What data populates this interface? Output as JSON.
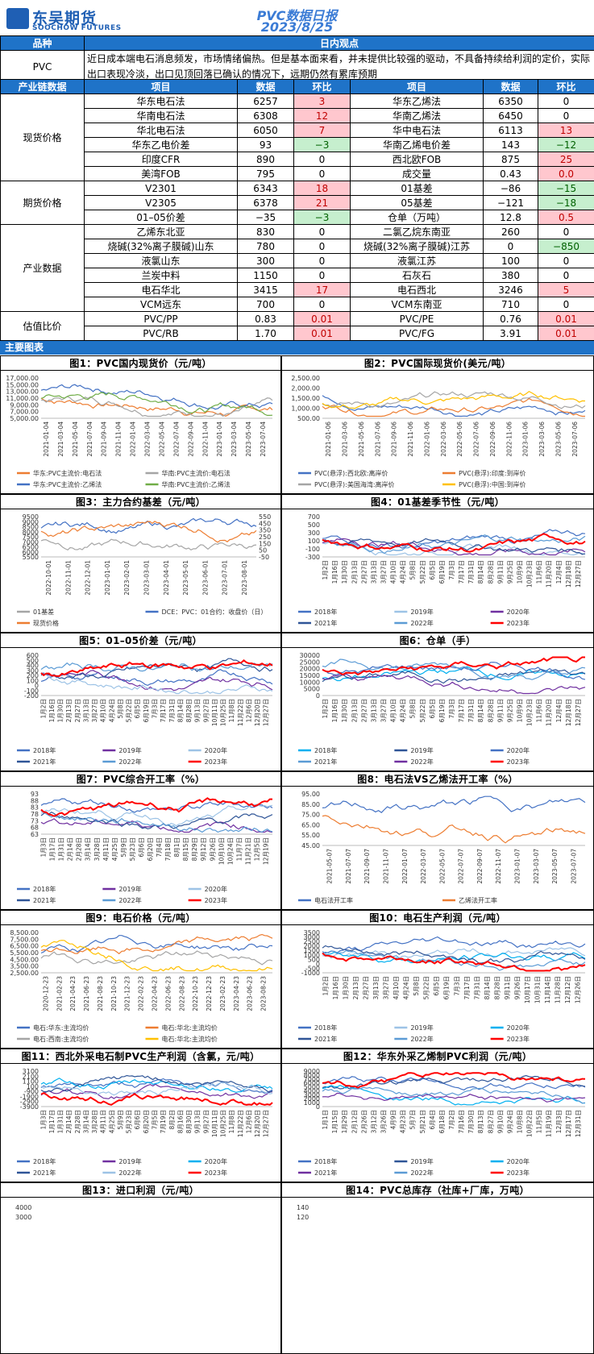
{
  "header": {
    "logo_cn": "东吴期货",
    "logo_en": "SOOCHOW FUTURES",
    "title": "PVC数据日报",
    "date": "2023/8/25"
  },
  "view": {
    "h1": "品种",
    "h2": "日内观点",
    "product": "PVC",
    "text": "近日成本端电石消息频发，市场情绪偏热。但是基本面来看，并未提供比较强的驱动，不具备持续给利润的定价，实际出口表现冷淡，出口见顶回落已确认的情况下，远期仍然有累库预期"
  },
  "table_header": {
    "c0": "产业链数据",
    "c1": "项目",
    "c2": "数据",
    "c3": "环比",
    "c4": "项目",
    "c5": "数据",
    "c6": "环比"
  },
  "sections": [
    {
      "cat": "现货价格",
      "rows": [
        [
          "华东电石法",
          "6257",
          "3",
          "up",
          "华东乙烯法",
          "6350",
          "0",
          ""
        ],
        [
          "华南电石法",
          "6308",
          "12",
          "up",
          "华南乙烯法",
          "6450",
          "0",
          ""
        ],
        [
          "华北电石法",
          "6050",
          "7",
          "up",
          "华中电石法",
          "6113",
          "13",
          "up"
        ],
        [
          "华东乙电价差",
          "93",
          "−3",
          "dn",
          "华南乙烯电价差",
          "143",
          "−12",
          "dn"
        ],
        [
          "印度CFR",
          "890",
          "0",
          "",
          "西北欧FOB",
          "875",
          "25",
          "up"
        ],
        [
          "美湾FOB",
          "795",
          "0",
          "",
          "成交量",
          "0.43",
          "0.0",
          "up"
        ]
      ]
    },
    {
      "cat": "期货价格",
      "rows": [
        [
          "V2301",
          "6343",
          "18",
          "up",
          "01基差",
          "−86",
          "−15",
          "dn"
        ],
        [
          "V2305",
          "6378",
          "21",
          "up",
          "05基差",
          "−121",
          "−18",
          "dn"
        ],
        [
          "01–05价差",
          "−35",
          "−3",
          "dn",
          "仓单（万吨）",
          "12.8",
          "0.5",
          "up"
        ]
      ]
    },
    {
      "cat": "产业数据",
      "rows": [
        [
          "乙烯东北亚",
          "830",
          "0",
          "",
          "二氯乙烷东南亚",
          "260",
          "0",
          ""
        ],
        [
          "烧碱(32%离子膜碱)山东",
          "780",
          "0",
          "",
          "烧碱(32%离子膜碱)江苏",
          "0",
          "−850",
          "dn"
        ],
        [
          "液氯山东",
          "300",
          "0",
          "",
          "液氯江苏",
          "100",
          "0",
          ""
        ],
        [
          "兰炭中料",
          "1150",
          "0",
          "",
          "石灰石",
          "380",
          "0",
          ""
        ],
        [
          "电石华北",
          "3415",
          "17",
          "up",
          "电石西北",
          "3246",
          "5",
          "up"
        ],
        [
          "VCM远东",
          "700",
          "0",
          "",
          "VCM东南亚",
          "710",
          "0",
          ""
        ]
      ]
    },
    {
      "cat": "估值比价",
      "rows": [
        [
          "PVC/PP",
          "0.83",
          "0.01",
          "up",
          "PVC/PE",
          "0.76",
          "0.01",
          "up"
        ],
        [
          "PVC/RB",
          "1.70",
          "0.01",
          "up",
          "PVC/FG",
          "3.91",
          "0.01",
          "up"
        ]
      ]
    }
  ],
  "charts_bar": "主要图表",
  "charts": [
    {
      "title": "图1：PVC国内现货价（元/吨）",
      "yticks": [
        "17,000.00",
        "15,000.00",
        "13,000.00",
        "11,000.00",
        "9,000.00",
        "7,000.00",
        "5,000.00"
      ],
      "xticks": [
        "2021-01-04",
        "2021-03-04",
        "2021-05-04",
        "2021-07-04",
        "2021-09-04",
        "2021-11-04",
        "2022-01-04",
        "2022-03-04",
        "2022-05-04",
        "2022-07-04",
        "2022-09-04",
        "2022-11-04",
        "2023-01-04",
        "2023-03-04",
        "2023-05-04",
        "2023-07-04"
      ],
      "legend": [
        "华东:PVC主流价:电石法",
        "华南:PVC主流价:电石法",
        "华东:PVC主流价:乙烯法",
        "华南:PVC主流价:乙烯法"
      ],
      "colors": [
        "#ed7d31",
        "#a5a5a5",
        "#4472c4",
        "#70ad47"
      ]
    },
    {
      "title": "图2：PVC国际现货价(美元/吨）",
      "yticks": [
        "2,500.00",
        "2,000.00",
        "1,500.00",
        "1,000.00",
        "500.00"
      ],
      "xticks": [
        "2021-01-06",
        "2021-03-06",
        "2021-05-06",
        "2021-07-06",
        "2021-09-06",
        "2021-11-06",
        "2022-01-06",
        "2022-03-06",
        "2022-05-06",
        "2022-07-06",
        "2022-09-06",
        "2022-11-06",
        "2023-01-06",
        "2023-03-06",
        "2023-05-06",
        "2023-07-06"
      ],
      "legend": [
        "PVC(悬浮):西北欧:离岸价",
        "PVC(悬浮):印度:到岸价",
        "PVC(悬浮):美国海湾:离岸价",
        "PVC(悬浮):中国:到岸价"
      ],
      "colors": [
        "#4472c4",
        "#ed7d31",
        "#a5a5a5",
        "#ffc000"
      ]
    },
    {
      "title": "图3：主力合约基差（元/吨）",
      "yticks": [
        "9500",
        "9000",
        "8500",
        "8000",
        "7500",
        "7000",
        "6500",
        "6000",
        "5500"
      ],
      "y2ticks": [
        "550",
        "450",
        "350",
        "250",
        "150",
        "50",
        "-50"
      ],
      "xticks": [
        "2022-10-01",
        "2022-11-01",
        "2022-12-01",
        "2023-01-01",
        "2023-02-01",
        "2023-03-01",
        "2023-04-01",
        "2023-05-01",
        "2023-06-01",
        "2023-07-01",
        "2023-08-01"
      ],
      "legend": [
        "01基差",
        "DCE：PVC：01合约：收盘价（日）",
        "现货价格"
      ],
      "colors": [
        "#a5a5a5",
        "#4472c4",
        "#ed7d31"
      ]
    },
    {
      "title": "图4：01基差季节性（元/吨）",
      "yticks": [
        "700",
        "500",
        "300",
        "100",
        "-100",
        "-300"
      ],
      "xticks": [
        "1月2日",
        "1月16日",
        "1月30日",
        "2月13日",
        "2月27日",
        "3月13日",
        "3月27日",
        "4月10日",
        "4月24日",
        "5月8日",
        "5月22日",
        "6月5日",
        "6月19日",
        "7月3日",
        "7月17日",
        "7月31日",
        "8月14日",
        "8月28日",
        "9月11日",
        "9月25日",
        "10月9日",
        "10月23日",
        "11月6日",
        "11月20日",
        "12月4日",
        "12月18日",
        "12月27日"
      ],
      "legend": [
        "2018年",
        "2019年",
        "2020年",
        "2021年",
        "2022年",
        "2023年"
      ],
      "colors": [
        "#4472c4",
        "#9dc3e6",
        "#7030a0",
        "#2f5597",
        "#5b9bd5",
        "#ff0000"
      ]
    },
    {
      "title": "图5：01–05价差（元/吨）",
      "yticks": [
        "600",
        "500",
        "400",
        "300",
        "200",
        "100",
        "0",
        "-100",
        "-200"
      ],
      "xticks": [
        "1月2日",
        "1月16日",
        "1月30日",
        "2月13日",
        "2月27日",
        "3月13日",
        "3月27日",
        "4月10日",
        "4月24日",
        "5月8日",
        "5月22日",
        "6月5日",
        "6月19日",
        "7月3日",
        "7月17日",
        "7月31日",
        "8月14日",
        "8月28日",
        "9月13日",
        "9月27日",
        "10月11日",
        "10月25日",
        "11月8日",
        "11月22日",
        "12月6日",
        "12月20日",
        "12月27日"
      ],
      "legend": [
        "2018年",
        "2019年",
        "2020年",
        "2021年",
        "2022年",
        "2023年"
      ],
      "colors": [
        "#4472c4",
        "#7030a0",
        "#9dc3e6",
        "#2f5597",
        "#5b9bd5",
        "#ff0000"
      ]
    },
    {
      "title": "图6：仓单（手）",
      "yticks": [
        "30000",
        "25000",
        "20000",
        "15000",
        "10000",
        "5000",
        "0"
      ],
      "xticks": [
        "1月2日",
        "1月16日",
        "1月30日",
        "2月13日",
        "2月27日",
        "3月13日",
        "3月27日",
        "4月10日",
        "4月24日",
        "5月8日",
        "5月22日",
        "6月5日",
        "6月19日",
        "7月3日",
        "7月17日",
        "7月31日",
        "8月14日",
        "8月28日",
        "9月11日",
        "9月25日",
        "10月9日",
        "10月23日",
        "11月6日",
        "11月20日",
        "12月4日",
        "12月18日",
        "12月27日"
      ],
      "legend": [
        "2018年",
        "2019年",
        "2020年",
        "2021年",
        "2022年",
        "2023年"
      ],
      "colors": [
        "#00b0f0",
        "#2f5597",
        "#4472c4",
        "#5b9bd5",
        "#7030a0",
        "#ff0000"
      ]
    },
    {
      "title": "图7：PVC综合开工率（%）",
      "yticks": [
        "93",
        "88",
        "83",
        "78",
        "73",
        "68",
        "63"
      ],
      "xticks": [
        "1月3日",
        "1月17日",
        "1月31日",
        "2月14日",
        "2月28日",
        "3月14日",
        "3月28日",
        "4月11日",
        "4月25日",
        "5月9日",
        "5月23日",
        "6月6日",
        "6月20日",
        "7月4日",
        "7月18日",
        "8月1日",
        "8月15日",
        "8月29日",
        "9月12日",
        "9月26日",
        "10月10日",
        "10月24日",
        "11月7日",
        "11月21日",
        "12月5日",
        "12月19日"
      ],
      "legend": [
        "2018年",
        "2019年",
        "2020年",
        "2021年",
        "2022年",
        "2023年"
      ],
      "colors": [
        "#4472c4",
        "#7030a0",
        "#9dc3e6",
        "#2f5597",
        "#5b9bd5",
        "#ff0000"
      ]
    },
    {
      "title": "图8：电石法VS乙烯法开工率（%）",
      "yticks": [
        "95.00",
        "85.00",
        "75.00",
        "65.00",
        "55.00",
        "45.00"
      ],
      "xticks": [
        "2021-05-07",
        "2021-07-07",
        "2021-09-07",
        "2021-11-07",
        "2022-01-07",
        "2022-03-07",
        "2022-05-07",
        "2022-07-07",
        "2022-09-07",
        "2022-11-07",
        "2023-01-07",
        "2023-03-07",
        "2023-05-07",
        "2023-07-07"
      ],
      "legend": [
        "电石法开工率",
        "乙烯法开工率"
      ],
      "colors": [
        "#4472c4",
        "#ed7d31"
      ]
    },
    {
      "title": "图9：电石价格（元/吨）",
      "yticks": [
        "8,500.00",
        "7,500.00",
        "6,500.00",
        "5,500.00",
        "4,500.00",
        "3,500.00",
        "2,500.00"
      ],
      "xticks": [
        "2020-12-23",
        "2021-02-23",
        "2021-04-23",
        "2021-06-23",
        "2021-08-23",
        "2021-10-23",
        "2021-12-23",
        "2022-02-23",
        "2022-04-23",
        "2022-06-23",
        "2022-08-23",
        "2022-10-23",
        "2022-12-23",
        "2023-02-23",
        "2023-04-23",
        "2023-06-23",
        "2023-08-23"
      ],
      "legend": [
        "电石:华东:主流均价",
        "电石:华北:主流均价",
        "电石:西南:主流均价",
        "电石:华北:主流均价"
      ],
      "colors": [
        "#4472c4",
        "#ed7d31",
        "#a5a5a5",
        "#ffc000"
      ]
    },
    {
      "title": "图10：电石生产利润（元/吨）",
      "yticks": [
        "3500",
        "3000",
        "2500",
        "2000",
        "1500",
        "1000",
        "500",
        "0",
        "-500",
        "-1000"
      ],
      "xticks": [
        "1月2日",
        "1月16日",
        "1月30日",
        "2月13日",
        "2月27日",
        "3月13日",
        "3月27日",
        "4月10日",
        "4月24日",
        "5月8日",
        "5月22日",
        "6月5日",
        "6月19日",
        "7月3日",
        "7月17日",
        "7月31日",
        "8月14日",
        "8月28日",
        "9月11日",
        "9月26日",
        "10月17日",
        "10月31日",
        "11月14日",
        "11月28日",
        "12月12日",
        "12月26日"
      ],
      "legend": [
        "2018年",
        "2019年",
        "2020年",
        "2021年",
        "2022年",
        "2023年"
      ],
      "colors": [
        "#4472c4",
        "#9dc3e6",
        "#00b0f0",
        "#2f5597",
        "#5b9bd5",
        "#ff0000"
      ]
    },
    {
      "title": "图11：西北外采电石制PVC生产利润（含氯，元/吨）",
      "yticks": [
        "3100",
        "2100",
        "1100",
        "100",
        "-900",
        "-1900",
        "-2900",
        "-3900"
      ],
      "xticks": [
        "1月3日",
        "1月17日",
        "1月31日",
        "2月14日",
        "2月28日",
        "3月14日",
        "3月28日",
        "4月11日",
        "4月25日",
        "5月9日",
        "5月23日",
        "6月6日",
        "6月20日",
        "7月5日",
        "7月19日",
        "8月2日",
        "8月16日",
        "8月30日",
        "9月13日",
        "9月27日",
        "10月11日",
        "10月25日",
        "11月8日",
        "11月22日",
        "12月6日",
        "12月20日",
        "12月27日"
      ],
      "legend": [
        "2018年",
        "2019年",
        "2020年",
        "2021年",
        "2022年",
        "2023年"
      ],
      "colors": [
        "#4472c4",
        "#7030a0",
        "#00b0f0",
        "#2f5597",
        "#9dc3e6",
        "#ff0000"
      ]
    },
    {
      "title": "图12：华东外采乙烯制PVC利润（元/吨）",
      "yticks": [
        "9000",
        "8000",
        "7000",
        "6000",
        "5000",
        "4000",
        "3000",
        "2000",
        "1000",
        "0"
      ],
      "xticks": [
        "1月1日",
        "1月15日",
        "1月29日",
        "2月12日",
        "2月26日",
        "3月12日",
        "3月26日",
        "4月9日",
        "4月23日",
        "5月7日",
        "5月21日",
        "6月4日",
        "6月18日",
        "7月2日",
        "7月16日",
        "7月30日",
        "8月13日",
        "8月27日",
        "9月10日",
        "9月24日",
        "10月8日",
        "10月22日",
        "11月5日",
        "11月19日",
        "12月3日",
        "12月17日",
        "12月31日"
      ],
      "legend": [
        "2018年",
        "2019年",
        "2020年",
        "2021年",
        "2022年",
        "2023年"
      ],
      "colors": [
        "#4472c4",
        "#2f5597",
        "#00b0f0",
        "#7030a0",
        "#5b9bd5",
        "#ff0000"
      ]
    }
  ],
  "bottom": [
    {
      "title": "图13：进口利润（元/吨）",
      "yticks": [
        "4000",
        "3000"
      ]
    },
    {
      "title": "图14：PVC总库存（社库+厂库，万吨）",
      "yticks": [
        "140",
        "120"
      ]
    }
  ]
}
